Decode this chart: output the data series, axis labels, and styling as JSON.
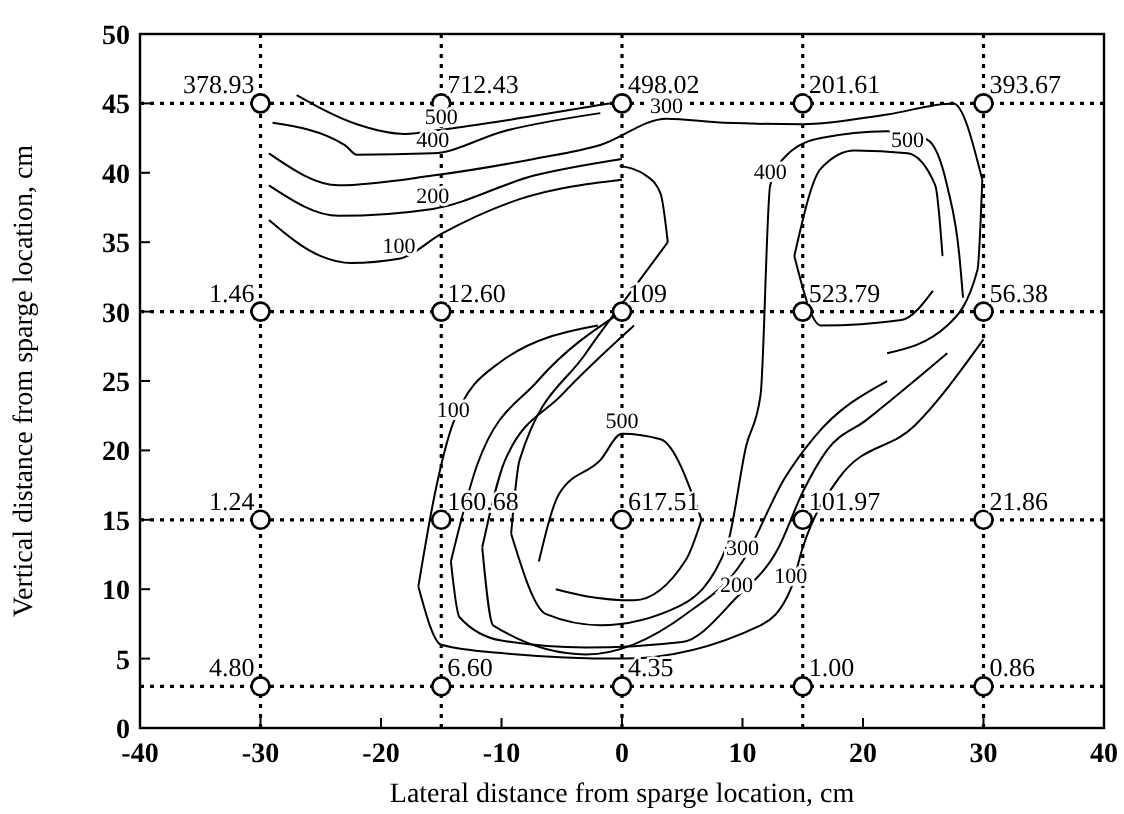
{
  "chart_data": {
    "type": "scatter",
    "xlabel": "Lateral distance from sparge location, cm",
    "ylabel": "Vertical distance from sparge location, cm",
    "xlim": [
      -40,
      40
    ],
    "xticks": [
      -40,
      -30,
      -20,
      -10,
      0,
      10,
      20,
      30,
      40
    ],
    "ylim": [
      0,
      50
    ],
    "yticks": [
      0,
      5,
      10,
      15,
      20,
      25,
      30,
      35,
      40,
      45,
      50
    ],
    "marker": "circle",
    "ref_lines": [
      {
        "axis": "x",
        "value": -30,
        "line_style": "dotted",
        "color": "#000000"
      },
      {
        "axis": "x",
        "value": -15,
        "line_style": "dotted",
        "color": "#000000"
      },
      {
        "axis": "x",
        "value": 0,
        "line_style": "dotted",
        "color": "#000000"
      },
      {
        "axis": "x",
        "value": 15,
        "line_style": "dotted",
        "color": "#000000"
      },
      {
        "axis": "x",
        "value": 30,
        "line_style": "dotted",
        "color": "#000000"
      },
      {
        "axis": "y",
        "value": 3,
        "line_style": "dotted",
        "color": "#000000"
      },
      {
        "axis": "y",
        "value": 15,
        "line_style": "dotted",
        "color": "#000000"
      },
      {
        "axis": "y",
        "value": 30,
        "line_style": "dotted",
        "color": "#000000"
      },
      {
        "axis": "y",
        "value": 45,
        "line_style": "dotted",
        "color": "#000000"
      }
    ],
    "annotations": [
      {
        "text": "378.93",
        "x": -30,
        "y": 45
      },
      {
        "text": "712.43",
        "x": -15,
        "y": 45
      },
      {
        "text": "498.02",
        "x": 0,
        "y": 45
      },
      {
        "text": "201.61",
        "x": 15,
        "y": 45
      },
      {
        "text": "393.67",
        "x": 30,
        "y": 45
      },
      {
        "text": "1.46",
        "x": -30,
        "y": 30
      },
      {
        "text": "12.60",
        "x": -15,
        "y": 30
      },
      {
        "text": "109",
        "x": 0,
        "y": 30
      },
      {
        "text": "523.79",
        "x": 15,
        "y": 30
      },
      {
        "text": "56.38",
        "x": 30,
        "y": 30
      },
      {
        "text": "1.24",
        "x": -30,
        "y": 15
      },
      {
        "text": "160.68",
        "x": -15,
        "y": 15
      },
      {
        "text": "617.51",
        "x": 0,
        "y": 15
      },
      {
        "text": "101.97",
        "x": 15,
        "y": 15
      },
      {
        "text": "21.86",
        "x": 30,
        "y": 15
      },
      {
        "text": "4.80",
        "x": -30,
        "y": 3
      },
      {
        "text": "6.60",
        "x": -15,
        "y": 3
      },
      {
        "text": "4.35",
        "x": 0,
        "y": 3
      },
      {
        "text": "1.00",
        "x": 15,
        "y": 3
      },
      {
        "text": "0.86",
        "x": 30,
        "y": 3
      }
    ],
    "series": [
      {
        "color": "#000000",
        "x": [
          -30,
          -15,
          0,
          15,
          30,
          -30,
          -15,
          0,
          15,
          30,
          -30,
          -15,
          0,
          15,
          30,
          -30,
          -15,
          0,
          15,
          30
        ],
        "values": [
          45,
          45,
          45,
          45,
          45,
          30,
          30,
          30,
          30,
          30,
          15,
          15,
          15,
          15,
          15,
          3,
          3,
          3,
          3,
          3
        ]
      },
      {
        "type": "line",
        "name": "500",
        "color": "#000000",
        "marker": "none",
        "x": [
          -27,
          -22,
          -18,
          -15,
          -8,
          -1
        ],
        "values": [
          45.6,
          43.5,
          42.8,
          43.1,
          44,
          45
        ]
      },
      {
        "type": "line",
        "name": "400",
        "color": "#000000",
        "marker": "none",
        "x": [
          -29,
          -23,
          -22,
          -15.7,
          -9.8,
          -1.8
        ],
        "values": [
          43.6,
          42,
          41.3,
          41.4,
          43,
          44.3
        ]
      },
      {
        "type": "line",
        "name": "300",
        "color": "#000000",
        "marker": "none",
        "x": [
          -29.3,
          -23.5,
          -15.7,
          -7.3,
          -1.8,
          3.7,
          8.5,
          15,
          22,
          27.5,
          29.9
        ],
        "values": [
          41.4,
          39.1,
          39.8,
          41,
          42,
          43.9,
          43.6,
          43.5,
          44.2,
          45,
          39.5
        ]
      },
      {
        "type": "line",
        "color": "#000000",
        "marker": "none",
        "x": [
          22,
          27,
          29.5,
          29.9
        ],
        "values": [
          27,
          29,
          33,
          39.5
        ]
      },
      {
        "type": "line",
        "name": "200",
        "color": "#000000",
        "marker": "none",
        "x": [
          -29.3,
          -23.5,
          -15.7,
          -7.3,
          0
        ],
        "values": [
          39.1,
          36.9,
          37.4,
          39.8,
          41
        ]
      },
      {
        "type": "line",
        "name": "100",
        "color": "#000000",
        "marker": "none",
        "x": [
          -29.3,
          -25,
          -22.5,
          -18.5,
          -15,
          -8.5,
          0
        ],
        "values": [
          36.6,
          34,
          33.5,
          33.8,
          35.6,
          38.1,
          39.5
        ]
      },
      {
        "type": "line",
        "name": "500",
        "color": "#000000",
        "marker": "none",
        "x": [
          14.3,
          16.5,
          19.3,
          23.7,
          26,
          26.6
        ],
        "values": [
          34,
          40.3,
          41.6,
          41.4,
          39.1,
          34
        ]
      },
      {
        "type": "line",
        "color": "#000000",
        "marker": "none",
        "x": [
          14.3,
          16.5,
          23.2,
          25.8
        ],
        "values": [
          34,
          29,
          29.4,
          31.5
        ]
      },
      {
        "type": "line",
        "color": "#000000",
        "marker": "none",
        "x": [
          -0.2,
          2,
          3.2,
          3.8
        ],
        "values": [
          40.5,
          39.8,
          38.5,
          35
        ]
      },
      {
        "type": "line",
        "color": "#000000",
        "marker": "none",
        "x": [
          -9.2,
          -8.5,
          -3,
          1.5,
          3.8
        ],
        "values": [
          14,
          19.3,
          27,
          32.3,
          35
        ]
      },
      {
        "type": "line",
        "name": "400",
        "color": "#000000",
        "marker": "none",
        "x": [
          -9.2,
          -6.3,
          -1.8,
          4.8,
          8.7,
          10.3,
          11.5,
          12.3,
          13.7,
          16.5,
          22,
          25.3,
          27,
          28,
          28.3
        ],
        "values": [
          14,
          8.2,
          7.4,
          8.8,
          13.1,
          20.3,
          24,
          39.1,
          41.3,
          42.5,
          43,
          42.4,
          39,
          34,
          31
        ]
      },
      {
        "type": "line",
        "name": "500",
        "color": "#000000",
        "marker": "none",
        "x": [
          -6.9,
          -5.2,
          -1.8,
          0,
          3.2,
          6.6
        ],
        "values": [
          12,
          16.9,
          19.3,
          21.2,
          20.8,
          15
        ]
      },
      {
        "type": "line",
        "color": "#000000",
        "marker": "none",
        "x": [
          -5.5,
          -3,
          1,
          5.3,
          6.6
        ],
        "values": [
          10,
          9.5,
          9.2,
          12.1,
          15
        ]
      },
      {
        "type": "line",
        "color": "#000000",
        "marker": "none",
        "x": [
          -11.6,
          -9.7,
          -5,
          1
        ],
        "values": [
          13,
          19.3,
          24,
          29
        ]
      },
      {
        "type": "line",
        "name": "300",
        "color": "#000000",
        "marker": "none",
        "x": [
          -11.6,
          -10.7,
          -3,
          5.3,
          10,
          13.5,
          16,
          22
        ],
        "values": [
          13,
          7.4,
          5.3,
          8.2,
          12,
          18,
          21,
          25
        ]
      },
      {
        "type": "line",
        "color": "#000000",
        "marker": "none",
        "x": [
          -14.2,
          -12,
          -7,
          0
        ],
        "values": [
          12,
          19,
          25,
          30
        ]
      },
      {
        "type": "line",
        "name": "200",
        "color": "#000000",
        "marker": "none",
        "x": [
          -14.2,
          -13.5,
          -10,
          -3,
          5,
          9.5,
          13,
          15,
          17,
          20.3,
          27
        ],
        "values": [
          12,
          8,
          6.3,
          5.8,
          6.2,
          9.4,
          13,
          17,
          20,
          22.2,
          27
        ]
      },
      {
        "type": "line",
        "name": "100",
        "color": "#000000",
        "marker": "none",
        "x": [
          -16.9,
          -15.5,
          -14,
          -10.2,
          -2
        ],
        "values": [
          10.2,
          17,
          22,
          26.3,
          29
        ]
      },
      {
        "type": "line",
        "name": "100",
        "color": "#000000",
        "marker": "none",
        "x": [
          -16.9,
          -15,
          -10,
          0,
          11.5,
          14,
          15,
          18,
          24.3,
          30
        ],
        "values": [
          10.2,
          6,
          5.4,
          5,
          7.4,
          10,
          13,
          18,
          21.8,
          28
        ]
      }
    ]
  }
}
